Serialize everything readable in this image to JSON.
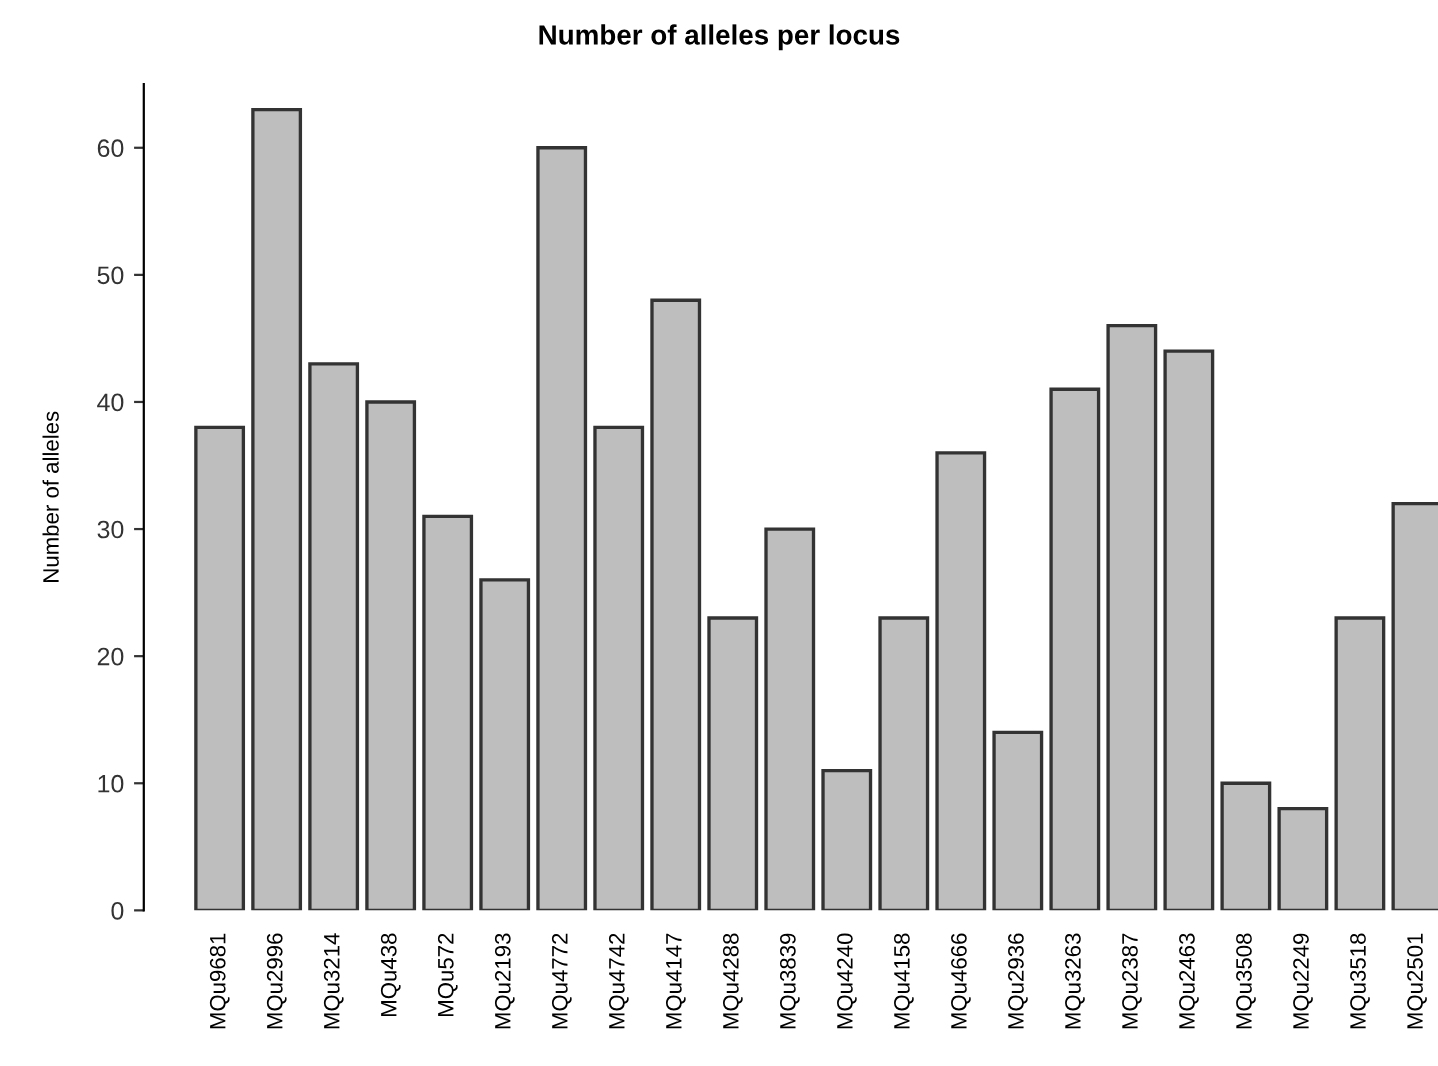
{
  "chart_data": {
    "type": "bar",
    "title": "Number of alleles per locus",
    "ylabel": "Number of alleles",
    "categories": [
      "MQu9681",
      "MQu2996",
      "MQu3214",
      "MQu438",
      "MQu572",
      "MQu2193",
      "MQu4772",
      "MQu4742",
      "MQu4147",
      "MQu4288",
      "MQu3839",
      "MQu4240",
      "MQu4158",
      "MQu4666",
      "MQu2936",
      "MQu3263",
      "MQu2387",
      "MQu2463",
      "MQu3508",
      "MQu2249",
      "MQu3518",
      "MQu2501"
    ],
    "values": [
      38,
      63,
      43,
      40,
      31,
      26,
      60,
      38,
      48,
      23,
      30,
      11,
      23,
      36,
      14,
      41,
      46,
      44,
      10,
      8,
      23,
      32
    ],
    "color": "#bebebe",
    "ylim": [
      0,
      65
    ],
    "yticks": [
      0,
      10,
      20,
      30,
      40,
      50,
      60
    ],
    "grid": false
  }
}
